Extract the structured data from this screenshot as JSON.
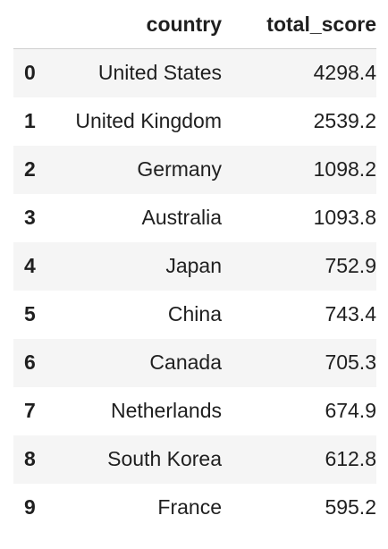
{
  "table": {
    "columns": [
      "",
      "country",
      "total_score"
    ],
    "rows": [
      {
        "index": "0",
        "country": "United States",
        "total_score": "4298.4"
      },
      {
        "index": "1",
        "country": "United Kingdom",
        "total_score": "2539.2"
      },
      {
        "index": "2",
        "country": "Germany",
        "total_score": "1098.2"
      },
      {
        "index": "3",
        "country": "Australia",
        "total_score": "1093.8"
      },
      {
        "index": "4",
        "country": "Japan",
        "total_score": "752.9"
      },
      {
        "index": "5",
        "country": "China",
        "total_score": "743.4"
      },
      {
        "index": "6",
        "country": "Canada",
        "total_score": "705.3"
      },
      {
        "index": "7",
        "country": "Netherlands",
        "total_score": "674.9"
      },
      {
        "index": "8",
        "country": "South Korea",
        "total_score": "612.8"
      },
      {
        "index": "9",
        "country": "France",
        "total_score": "595.2"
      }
    ]
  }
}
